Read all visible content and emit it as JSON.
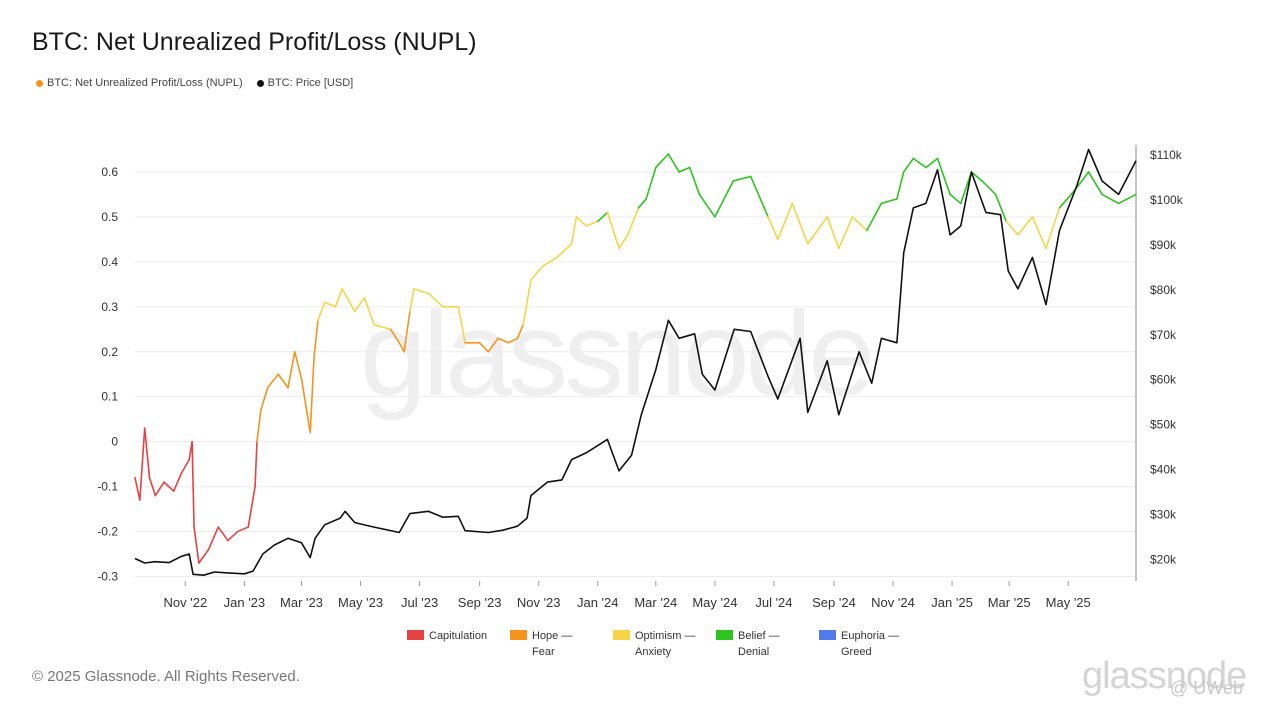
{
  "title": "BTC: Net Unrealized Profit/Loss (NUPL)",
  "legend": [
    {
      "label": "BTC: Net Unrealized Profit/Loss (NUPL)",
      "color": "#f7931a"
    },
    {
      "label": "BTC: Price [USD]",
      "color": "#111111"
    }
  ],
  "zones": [
    {
      "label": "Capitulation",
      "color": "#e84142"
    },
    {
      "label": "Hope —\nFear",
      "color": "#f7931a"
    },
    {
      "label": "Optimism —\nAnxiety",
      "color": "#f5d547"
    },
    {
      "label": "Belief —\nDenial",
      "color": "#2ec41f"
    },
    {
      "label": "Euphoria —\nGreed",
      "color": "#4f7bec"
    }
  ],
  "copyright": "© 2025 Glassnode. All Rights Reserved.",
  "watermark": "glassnode",
  "watermark_user": "@ UWeb",
  "chart_data": {
    "type": "line",
    "xlim": [
      "2022-09-10",
      "2025-07-10"
    ],
    "x_ticks": [
      "Nov '22",
      "Jan '23",
      "Mar '23",
      "May '23",
      "Jul '23",
      "Sep '23",
      "Nov '23",
      "Jan '24",
      "Mar '24",
      "May '24",
      "Jul '24",
      "Sep '24",
      "Nov '24",
      "Jan '25",
      "Mar '25",
      "May '25"
    ],
    "y_left": {
      "ticks": [
        "0.6",
        "0.5",
        "0.4",
        "0.3",
        "0.2",
        "0.1",
        "0",
        "-0.1",
        "-0.2",
        "-0.3"
      ],
      "range": [
        -0.31,
        0.66
      ]
    },
    "y_right": {
      "ticks": [
        "$110k",
        "$100k",
        "$90k",
        "$80k",
        "$70k",
        "$60k",
        "$50k",
        "$40k",
        "$30k",
        "$20k"
      ],
      "range": [
        15000,
        112000
      ]
    },
    "zone_thresholds": [
      0,
      0.25,
      0.5,
      0.75
    ],
    "series": [
      {
        "name": "BTC: Net Unrealized Profit/Loss (NUPL)",
        "axis": "left",
        "points": [
          [
            "2022-09-10",
            -0.08
          ],
          [
            "2022-09-15",
            -0.13
          ],
          [
            "2022-09-20",
            0.03
          ],
          [
            "2022-09-25",
            -0.08
          ],
          [
            "2022-10-01",
            -0.12
          ],
          [
            "2022-10-10",
            -0.09
          ],
          [
            "2022-10-20",
            -0.11
          ],
          [
            "2022-10-28",
            -0.07
          ],
          [
            "2022-11-05",
            -0.04
          ],
          [
            "2022-11-08",
            0.0
          ],
          [
            "2022-11-10",
            -0.19
          ],
          [
            "2022-11-15",
            -0.27
          ],
          [
            "2022-11-25",
            -0.24
          ],
          [
            "2022-12-05",
            -0.19
          ],
          [
            "2022-12-15",
            -0.22
          ],
          [
            "2022-12-25",
            -0.2
          ],
          [
            "2023-01-05",
            -0.19
          ],
          [
            "2023-01-12",
            -0.1
          ],
          [
            "2023-01-14",
            0.0
          ],
          [
            "2023-01-18",
            0.07
          ],
          [
            "2023-01-25",
            0.12
          ],
          [
            "2023-02-05",
            0.15
          ],
          [
            "2023-02-15",
            0.12
          ],
          [
            "2023-02-22",
            0.2
          ],
          [
            "2023-03-01",
            0.14
          ],
          [
            "2023-03-10",
            0.02
          ],
          [
            "2023-03-14",
            0.19
          ],
          [
            "2023-03-18",
            0.27
          ],
          [
            "2023-03-25",
            0.31
          ],
          [
            "2023-04-05",
            0.3
          ],
          [
            "2023-04-12",
            0.34
          ],
          [
            "2023-04-25",
            0.29
          ],
          [
            "2023-05-05",
            0.32
          ],
          [
            "2023-05-15",
            0.26
          ],
          [
            "2023-06-01",
            0.25
          ],
          [
            "2023-06-10",
            0.22
          ],
          [
            "2023-06-15",
            0.2
          ],
          [
            "2023-06-21",
            0.29
          ],
          [
            "2023-06-25",
            0.34
          ],
          [
            "2023-07-10",
            0.33
          ],
          [
            "2023-07-25",
            0.3
          ],
          [
            "2023-08-10",
            0.3
          ],
          [
            "2023-08-17",
            0.22
          ],
          [
            "2023-09-01",
            0.22
          ],
          [
            "2023-09-10",
            0.2
          ],
          [
            "2023-09-20",
            0.23
          ],
          [
            "2023-10-01",
            0.22
          ],
          [
            "2023-10-10",
            0.23
          ],
          [
            "2023-10-16",
            0.26
          ],
          [
            "2023-10-24",
            0.36
          ],
          [
            "2023-11-05",
            0.39
          ],
          [
            "2023-11-20",
            0.41
          ],
          [
            "2023-12-05",
            0.44
          ],
          [
            "2023-12-10",
            0.5
          ],
          [
            "2023-12-20",
            0.48
          ],
          [
            "2024-01-01",
            0.49
          ],
          [
            "2024-01-11",
            0.51
          ],
          [
            "2024-01-23",
            0.43
          ],
          [
            "2024-02-01",
            0.46
          ],
          [
            "2024-02-12",
            0.52
          ],
          [
            "2024-02-20",
            0.54
          ],
          [
            "2024-03-01",
            0.61
          ],
          [
            "2024-03-14",
            0.64
          ],
          [
            "2024-03-25",
            0.6
          ],
          [
            "2024-04-05",
            0.61
          ],
          [
            "2024-04-15",
            0.55
          ],
          [
            "2024-05-01",
            0.5
          ],
          [
            "2024-05-20",
            0.58
          ],
          [
            "2024-06-07",
            0.59
          ],
          [
            "2024-06-25",
            0.5
          ],
          [
            "2024-07-05",
            0.45
          ],
          [
            "2024-07-20",
            0.53
          ],
          [
            "2024-08-05",
            0.44
          ],
          [
            "2024-08-25",
            0.5
          ],
          [
            "2024-09-06",
            0.43
          ],
          [
            "2024-09-20",
            0.5
          ],
          [
            "2024-10-05",
            0.47
          ],
          [
            "2024-10-20",
            0.53
          ],
          [
            "2024-11-05",
            0.54
          ],
          [
            "2024-11-12",
            0.6
          ],
          [
            "2024-11-22",
            0.63
          ],
          [
            "2024-12-05",
            0.61
          ],
          [
            "2024-12-17",
            0.63
          ],
          [
            "2024-12-30",
            0.55
          ],
          [
            "2025-01-10",
            0.53
          ],
          [
            "2025-01-21",
            0.6
          ],
          [
            "2025-02-01",
            0.58
          ],
          [
            "2025-02-15",
            0.55
          ],
          [
            "2025-02-26",
            0.49
          ],
          [
            "2025-03-10",
            0.46
          ],
          [
            "2025-03-25",
            0.5
          ],
          [
            "2025-04-08",
            0.43
          ],
          [
            "2025-04-22",
            0.52
          ],
          [
            "2025-05-08",
            0.56
          ],
          [
            "2025-05-22",
            0.6
          ],
          [
            "2025-06-05",
            0.55
          ],
          [
            "2025-06-22",
            0.53
          ],
          [
            "2025-07-10",
            0.55
          ]
        ]
      },
      {
        "name": "BTC: Price [USD]",
        "axis": "right",
        "color": "#111111",
        "points": [
          [
            "2022-09-10",
            20000
          ],
          [
            "2022-09-20",
            19000
          ],
          [
            "2022-10-01",
            19300
          ],
          [
            "2022-10-15",
            19100
          ],
          [
            "2022-10-28",
            20500
          ],
          [
            "2022-11-05",
            21000
          ],
          [
            "2022-11-09",
            16500
          ],
          [
            "2022-11-20",
            16300
          ],
          [
            "2022-12-01",
            17000
          ],
          [
            "2022-12-15",
            16800
          ],
          [
            "2023-01-01",
            16600
          ],
          [
            "2023-01-10",
            17200
          ],
          [
            "2023-01-20",
            21000
          ],
          [
            "2023-02-01",
            23000
          ],
          [
            "2023-02-15",
            24500
          ],
          [
            "2023-03-01",
            23500
          ],
          [
            "2023-03-10",
            20200
          ],
          [
            "2023-03-15",
            24500
          ],
          [
            "2023-03-25",
            27500
          ],
          [
            "2023-04-10",
            29000
          ],
          [
            "2023-04-15",
            30500
          ],
          [
            "2023-04-25",
            28000
          ],
          [
            "2023-05-15",
            27000
          ],
          [
            "2023-06-10",
            25800
          ],
          [
            "2023-06-21",
            30000
          ],
          [
            "2023-07-10",
            30500
          ],
          [
            "2023-07-25",
            29200
          ],
          [
            "2023-08-10",
            29400
          ],
          [
            "2023-08-17",
            26200
          ],
          [
            "2023-09-10",
            25800
          ],
          [
            "2023-09-25",
            26300
          ],
          [
            "2023-10-10",
            27200
          ],
          [
            "2023-10-20",
            29000
          ],
          [
            "2023-10-24",
            34000
          ],
          [
            "2023-11-10",
            37000
          ],
          [
            "2023-11-25",
            37500
          ],
          [
            "2023-12-05",
            42000
          ],
          [
            "2023-12-20",
            43500
          ],
          [
            "2024-01-11",
            46500
          ],
          [
            "2024-01-23",
            39500
          ],
          [
            "2024-02-05",
            43000
          ],
          [
            "2024-02-15",
            52000
          ],
          [
            "2024-03-01",
            62000
          ],
          [
            "2024-03-14",
            73000
          ],
          [
            "2024-03-25",
            69000
          ],
          [
            "2024-04-10",
            70000
          ],
          [
            "2024-04-18",
            61000
          ],
          [
            "2024-05-01",
            57500
          ],
          [
            "2024-05-21",
            71000
          ],
          [
            "2024-06-07",
            70500
          ],
          [
            "2024-06-25",
            60500
          ],
          [
            "2024-07-05",
            55500
          ],
          [
            "2024-07-28",
            69000
          ],
          [
            "2024-08-05",
            52500
          ],
          [
            "2024-08-25",
            64000
          ],
          [
            "2024-09-06",
            52000
          ],
          [
            "2024-09-27",
            66000
          ],
          [
            "2024-10-10",
            59000
          ],
          [
            "2024-10-20",
            69000
          ],
          [
            "2024-11-05",
            68000
          ],
          [
            "2024-11-12",
            88000
          ],
          [
            "2024-11-22",
            98000
          ],
          [
            "2024-12-05",
            99000
          ],
          [
            "2024-12-17",
            106500
          ],
          [
            "2024-12-30",
            92000
          ],
          [
            "2025-01-10",
            94000
          ],
          [
            "2025-01-21",
            106000
          ],
          [
            "2025-02-05",
            97000
          ],
          [
            "2025-02-20",
            96500
          ],
          [
            "2025-02-28",
            84000
          ],
          [
            "2025-03-10",
            80000
          ],
          [
            "2025-03-25",
            87000
          ],
          [
            "2025-04-08",
            76500
          ],
          [
            "2025-04-22",
            93000
          ],
          [
            "2025-05-10",
            103000
          ],
          [
            "2025-05-22",
            111000
          ],
          [
            "2025-06-05",
            104000
          ],
          [
            "2025-06-22",
            101000
          ],
          [
            "2025-07-10",
            108500
          ]
        ]
      }
    ]
  }
}
